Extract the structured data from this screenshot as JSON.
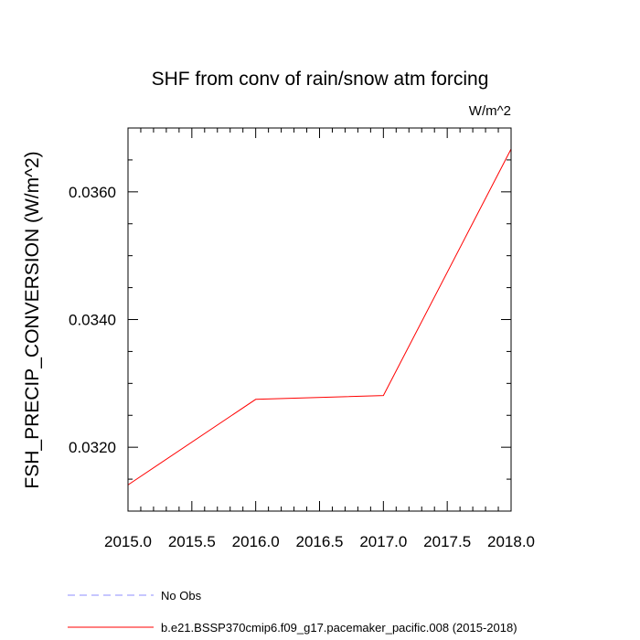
{
  "chart_data": {
    "type": "line",
    "title": "SHF from conv of rain/snow atm forcing",
    "units_label": "W/m^2",
    "ylabel": "FSH_PRECIP_CONVERSION  (W/m^2)",
    "xlabel": "",
    "xlim": [
      2015.0,
      2018.0
    ],
    "ylim": [
      0.031,
      0.037
    ],
    "x_ticks": [
      "2015.0",
      "2015.5",
      "2016.0",
      "2016.5",
      "2017.0",
      "2017.5",
      "2018.0"
    ],
    "y_ticks": [
      "0.0320",
      "0.0340",
      "0.0360"
    ],
    "grid": false,
    "legend_position": "bottom-left",
    "series": [
      {
        "name": "b.e21.BSSP370cmip6.f09_g17.pacemaker_pacific.008 (2015-2018)",
        "color": "#ff0000",
        "style": "solid",
        "x": [
          2015,
          2016,
          2017,
          2018
        ],
        "y": [
          0.03141,
          0.03275,
          0.03281,
          0.03667
        ]
      },
      {
        "name": "No Obs",
        "color": "#8c8cff",
        "style": "dashed",
        "x": [],
        "y": []
      }
    ]
  }
}
